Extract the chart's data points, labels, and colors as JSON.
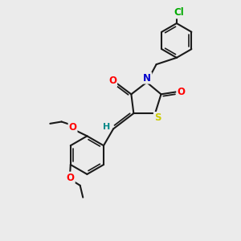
{
  "bg_color": "#ebebeb",
  "bond_color": "#1a1a1a",
  "atom_colors": {
    "O": "#ff0000",
    "N": "#0000cc",
    "S": "#cccc00",
    "Cl": "#00aa00",
    "H": "#008888",
    "C": "#1a1a1a"
  },
  "line_width": 1.5,
  "font_size": 8.5
}
